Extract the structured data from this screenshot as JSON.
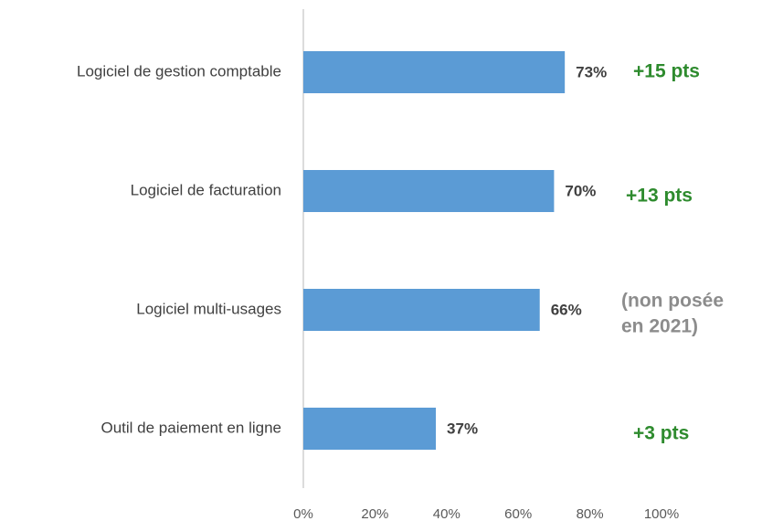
{
  "chart_data": {
    "type": "barh",
    "categories": [
      "Logiciel de gestion comptable",
      "Logiciel de facturation",
      "Logiciel multi-usages",
      "Outil de paiement en ligne"
    ],
    "values": [
      73,
      70,
      66,
      37
    ],
    "value_labels": [
      "73%",
      "70%",
      "66%",
      "37%"
    ],
    "color": "#5b9bd5",
    "xlim": [
      0,
      100
    ],
    "xticks": [
      {
        "value": 0,
        "label": "0%"
      },
      {
        "value": 20,
        "label": "20%"
      },
      {
        "value": 40,
        "label": "40%"
      },
      {
        "value": 60,
        "label": "60%"
      },
      {
        "value": 80,
        "label": "80%"
      },
      {
        "value": 100,
        "label": "100%"
      }
    ],
    "grid": false,
    "annotations": [
      {
        "lines": [
          "+15 pts"
        ],
        "color": "#2e8b2e"
      },
      {
        "lines": [
          "+13 pts"
        ],
        "color": "#2e8b2e"
      },
      {
        "lines": [
          "(non posée",
          "en 2021)"
        ],
        "color": "#8c8c8c"
      },
      {
        "lines": [
          "+3 pts"
        ],
        "color": "#2e8b2e"
      }
    ]
  }
}
